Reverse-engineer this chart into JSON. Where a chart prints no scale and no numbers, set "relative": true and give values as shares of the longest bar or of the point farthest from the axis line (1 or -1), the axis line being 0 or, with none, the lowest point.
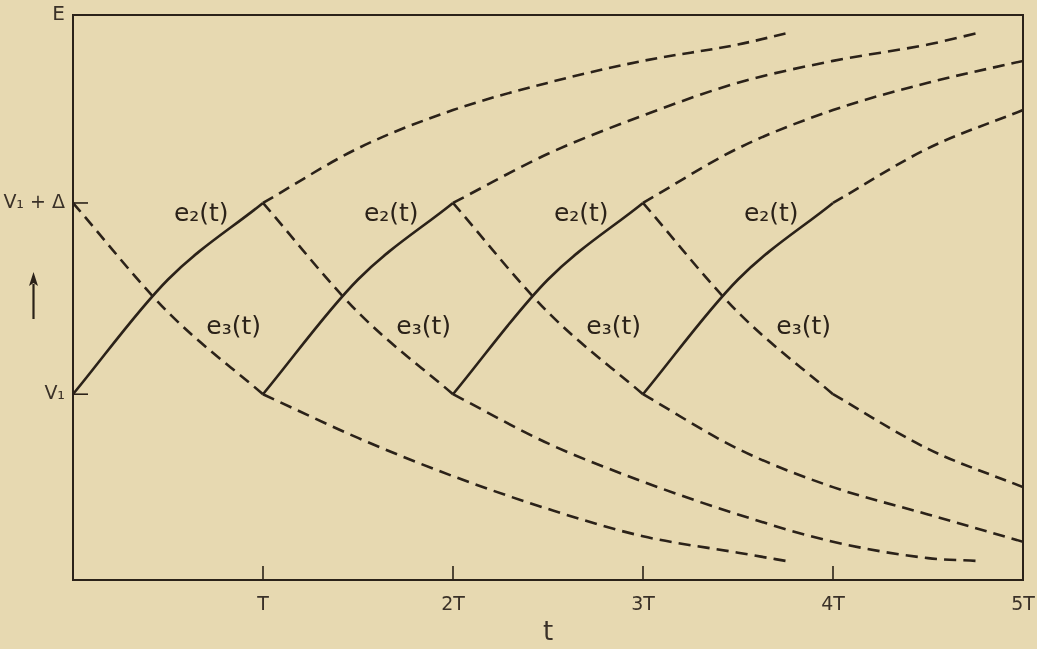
{
  "chart_data": {
    "type": "line",
    "relative": true,
    "xlabel": "t",
    "ylabel": "E",
    "xlim": [
      0,
      5
    ],
    "xticks": [
      {
        "value": 1,
        "label": "T"
      },
      {
        "value": 2,
        "label": "2T"
      },
      {
        "value": 3,
        "label": "3T"
      },
      {
        "value": 4,
        "label": "4T"
      },
      {
        "value": 5,
        "label": "5T"
      }
    ],
    "series": [
      {
        "name": "e₂(t)",
        "color": "#2b2219",
        "line_style": "solid",
        "x": [
          0,
          0.5,
          1
        ],
        "values": [
          0.34,
          0.55,
          0.69
        ]
      },
      {
        "name": "e₂(t)",
        "color": "#2b2219",
        "line_style": "solid",
        "x": [
          1,
          1.5,
          2
        ],
        "values": [
          0.34,
          0.55,
          0.69
        ]
      },
      {
        "name": "e₂(t)",
        "color": "#2b2219",
        "line_style": "solid",
        "x": [
          2,
          2.5,
          3
        ],
        "values": [
          0.34,
          0.55,
          0.69
        ]
      },
      {
        "name": "e₂(t)",
        "color": "#2b2219",
        "line_style": "solid",
        "x": [
          3,
          3.5,
          4
        ],
        "values": [
          0.34,
          0.55,
          0.69
        ]
      },
      {
        "name": "e₃(t)",
        "color": "#2b2219",
        "line_style": "dashed",
        "x": [
          0,
          0.5,
          1
        ],
        "values": [
          0.69,
          0.49,
          0.34
        ]
      },
      {
        "name": "e₃(t)",
        "color": "#2b2219",
        "line_style": "dashed",
        "x": [
          1,
          1.5,
          2
        ],
        "values": [
          0.69,
          0.49,
          0.34
        ]
      },
      {
        "name": "e₃(t)",
        "color": "#2b2219",
        "line_style": "dashed",
        "x": [
          2,
          2.5,
          3
        ],
        "values": [
          0.69,
          0.49,
          0.34
        ]
      },
      {
        "name": "e₃(t)",
        "color": "#2b2219",
        "line_style": "dashed",
        "x": [
          3,
          3.5,
          4
        ],
        "values": [
          0.69,
          0.49,
          0.34
        ]
      },
      {
        "color": "#2b2219",
        "line_style": "dashed",
        "x": [
          1,
          1.5,
          2,
          2.5,
          3,
          3.5,
          3.75
        ],
        "values": [
          0.69,
          0.79,
          0.86,
          0.91,
          0.95,
          0.98,
          1
        ]
      },
      {
        "color": "#2b2219",
        "line_style": "dashed",
        "x": [
          2,
          2.5,
          3,
          3.5,
          4,
          4.5,
          4.75
        ],
        "values": [
          0.69,
          0.78,
          0.85,
          0.91,
          0.95,
          0.98,
          1
        ]
      },
      {
        "color": "#2b2219",
        "line_style": "dashed",
        "x": [
          3,
          3.5,
          4,
          4.5,
          5
        ],
        "values": [
          0.69,
          0.79,
          0.86,
          0.91,
          0.95
        ]
      },
      {
        "color": "#2b2219",
        "line_style": "dashed",
        "x": [
          4,
          4.5,
          5
        ],
        "values": [
          0.69,
          0.79,
          0.86
        ]
      },
      {
        "color": "#2b2219",
        "line_style": "dashed",
        "x": [
          1,
          1.5,
          2,
          2.5,
          3,
          3.5,
          3.75
        ],
        "values": [
          0.34,
          0.26,
          0.19,
          0.13,
          0.08,
          0.05,
          0.035
        ]
      },
      {
        "color": "#2b2219",
        "line_style": "dashed",
        "x": [
          2,
          2.5,
          3,
          3.5,
          4,
          4.5,
          4.75
        ],
        "values": [
          0.34,
          0.25,
          0.18,
          0.12,
          0.07,
          0.04,
          0.035
        ]
      },
      {
        "color": "#2b2219",
        "line_style": "dashed",
        "x": [
          3,
          3.5,
          4,
          4.5,
          5
        ],
        "values": [
          0.34,
          0.24,
          0.17,
          0.12,
          0.07
        ]
      },
      {
        "color": "#2b2219",
        "line_style": "dashed",
        "x": [
          4,
          4.5,
          5
        ],
        "values": [
          0.34,
          0.24,
          0.17
        ]
      }
    ],
    "annotations": [
      {
        "text": "V₁",
        "x": 0,
        "y": 0.34
      },
      {
        "text": "V₁ + Δ",
        "x": 0,
        "y": 0.69
      }
    ]
  }
}
